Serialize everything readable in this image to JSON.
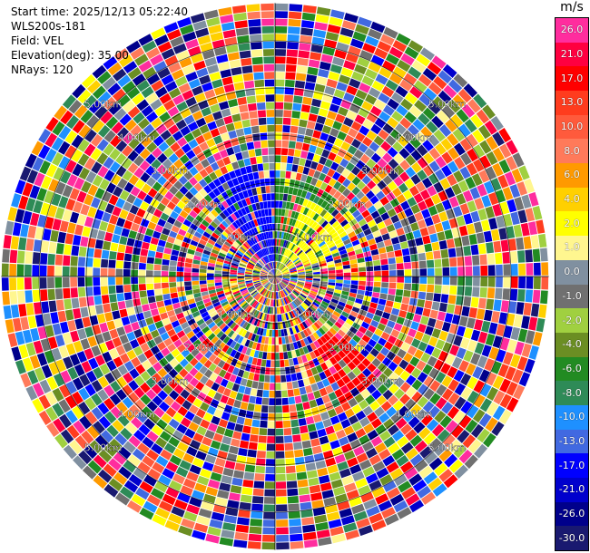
{
  "info": {
    "start_time": "Start time: 2025/12/13 05:22:40",
    "site": "WLS200s-181",
    "field": "Field: VEL",
    "elevation": "Elevation(deg): 35.00",
    "nrays": "NRays: 120"
  },
  "colorbar": {
    "unit": "m/s",
    "bins": [
      {
        "label": "26.0",
        "color": "#ff2d9e"
      },
      {
        "label": "21.0",
        "color": "#ff0040"
      },
      {
        "label": "17.0",
        "color": "#ff0000"
      },
      {
        "label": "13.0",
        "color": "#ff3c1e"
      },
      {
        "label": "10.0",
        "color": "#ff5a3c"
      },
      {
        "label": "8.0",
        "color": "#ff7a5a"
      },
      {
        "label": "6.0",
        "color": "#ff9a00"
      },
      {
        "label": "4.0",
        "color": "#ffd000"
      },
      {
        "label": "2.0",
        "color": "#ffff00"
      },
      {
        "label": "1.0",
        "color": "#fff68f"
      },
      {
        "label": "0.0",
        "color": "#8090a0"
      },
      {
        "label": "-1.0",
        "color": "#707070"
      },
      {
        "label": "-2.0",
        "color": "#a0d040"
      },
      {
        "label": "-4.0",
        "color": "#6b8e23"
      },
      {
        "label": "-6.0",
        "color": "#228b22"
      },
      {
        "label": "-8.0",
        "color": "#2e8b57"
      },
      {
        "label": "-10.0",
        "color": "#1e90ff"
      },
      {
        "label": "-13.0",
        "color": "#4169e1"
      },
      {
        "label": "-17.0",
        "color": "#0000ff"
      },
      {
        "label": "-21.0",
        "color": "#0000cd"
      },
      {
        "label": "-26.0",
        "color": "#00008b"
      },
      {
        "label": "-30.0",
        "color": "#191970"
      }
    ]
  },
  "chart_data": {
    "type": "heatmap",
    "projection": "polar-ppi",
    "field": "VEL",
    "units": "m/s",
    "nrays": 120,
    "range_rings_km": [
      1,
      2,
      3,
      4,
      5
    ],
    "range_ring_labels": [
      "1.00km",
      "2.00km",
      "3.00km",
      "4.00km",
      "5.00km"
    ],
    "max_range_km": 5.8,
    "gates_per_ray": 36,
    "grid": true,
    "colorbar_placement": "right",
    "near_range_features": [
      {
        "sector_deg": [
          320,
          360
        ],
        "gate_range": [
          0,
          14
        ],
        "color": "#0000ff",
        "description_value": -17.0
      },
      {
        "sector_deg": [
          20,
          70
        ],
        "gate_range": [
          0,
          10
        ],
        "color": "#ffff00",
        "description_value": 2.0
      },
      {
        "sector_deg": [
          0,
          40
        ],
        "gate_range": [
          0,
          12
        ],
        "color": "#228b22",
        "description_value": -6.0
      },
      {
        "sector_deg": [
          130,
          150
        ],
        "gate_range": [
          10,
          18
        ],
        "color": "#ff0000",
        "description_value": 17.0
      }
    ]
  }
}
